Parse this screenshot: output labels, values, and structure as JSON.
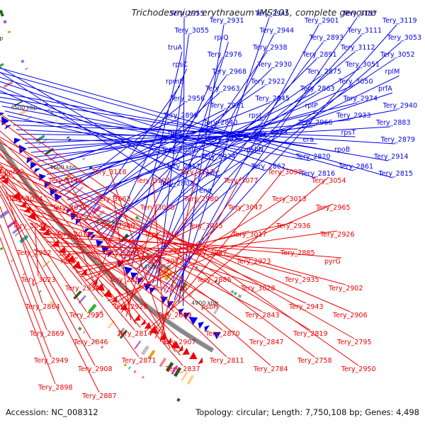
{
  "title": "Trichodesmium erythraeum IMS101, complete genome",
  "accession_text": "Accession: NC_008312",
  "summary_text": "Topology: circular; Length: 7,750,108 bp; Genes: 4,498",
  "colors": {
    "forward": "#0000ee",
    "reverse": "#ee0000",
    "backbone": "#888888",
    "cds_palette": [
      "#00c0c0",
      "#9a9a9a",
      "#e0a020",
      "#30b030",
      "#c040c0",
      "#8080e0",
      "#f08080",
      "#206020",
      "#c0c0c0",
      "#ffd080"
    ]
  },
  "tick_labels": [
    "4900 kbp",
    "4800 kbp",
    "4700 kbp",
    "4600 kbp",
    "4500 kbp",
    "4400 kbp"
  ],
  "forward_labels": [
    "Tery_2955",
    "Tery_2931",
    "Tery_2945",
    "Tery_2901",
    "Tery_3157",
    "Tery_3119",
    "Tery_3055",
    "rplQ",
    "Tery_2944",
    "Tery_2893",
    "Tery_3111",
    "Tery_3053",
    "truA",
    "Tery_2976",
    "Tery_2938",
    "Tery_2891",
    "Tery_3112",
    "Tery_3052",
    "rpsC",
    "Tery_2968",
    "Tery_2930",
    "Tery_2875",
    "Tery_3051",
    "rplM",
    "rpmE",
    "Tery_2963",
    "Tery_2922",
    "Tery_2863",
    "Tery_3050",
    "prfA",
    "Tery_2956",
    "Tery_2921",
    "Tery_2845",
    "rplP",
    "Tery_2974",
    "Tery_2940",
    "Tery_2899",
    "Tery_2840",
    "rpsI",
    "Tery_2966",
    "Tery_2933",
    "Tery_2883",
    "gmk",
    "Tery_2925",
    "Tery_2873",
    "era",
    "rpsT",
    "Tery_2879",
    "Tery_2830",
    "Tery_2924",
    "psbN",
    "Tery_2820",
    "rpoB",
    "Tery_2914",
    "Tery_2817",
    "prfC",
    "Tery_2862",
    "Tery_2816",
    "Tery_2861",
    "Tery_2815",
    "Tery_2803",
    "eno"
  ],
  "reverse_labels": [
    "ppnK",
    "Tery_3144",
    "Tery_3118",
    "Tery_3104",
    "Tery_3117",
    "Tery_3077",
    "Tery_3098",
    "Tery_3054",
    "Tery_3074",
    "Tery_3039",
    "Tery_3063",
    "Tery_3030",
    "Tery_2980",
    "Tery_3047",
    "Tery_3013",
    "Tery_2965",
    "Tery_3048",
    "Tery_3014",
    "Tery_2960",
    "Tery_3015",
    "Tery_3045",
    "Tery_3017",
    "Tery_2936",
    "Tery_2926",
    "Tery_2952",
    "hisD",
    "Tery_2909",
    "Tery_3022",
    "Tery_2947",
    "Tery_2923",
    "Tery_2885",
    "pyrG",
    "Tery_3023",
    "Tery_2934",
    "Tery_2856",
    "Tery_3026",
    "Tery_2886",
    "Tery_3028",
    "Tery_2935",
    "Tery_2902",
    "Tery_2864",
    "Tery_2953",
    "Tery_2928",
    "Tery_2889",
    "psbH",
    "Tery_2843",
    "Tery_2943",
    "Tery_2906",
    "Tery_2869",
    "Tery_2846",
    "Tery_2814",
    "Tery_2907",
    "Tery_2870",
    "Tery_2847",
    "Tery_2819",
    "Tery_2795",
    "Tery_2949",
    "Tery_2908",
    "Tery_2871",
    "Tery_2837",
    "Tery_2811",
    "Tery_2784",
    "Tery_2758",
    "Tery_2950",
    "Tery_2898",
    "Tery_2887"
  ]
}
